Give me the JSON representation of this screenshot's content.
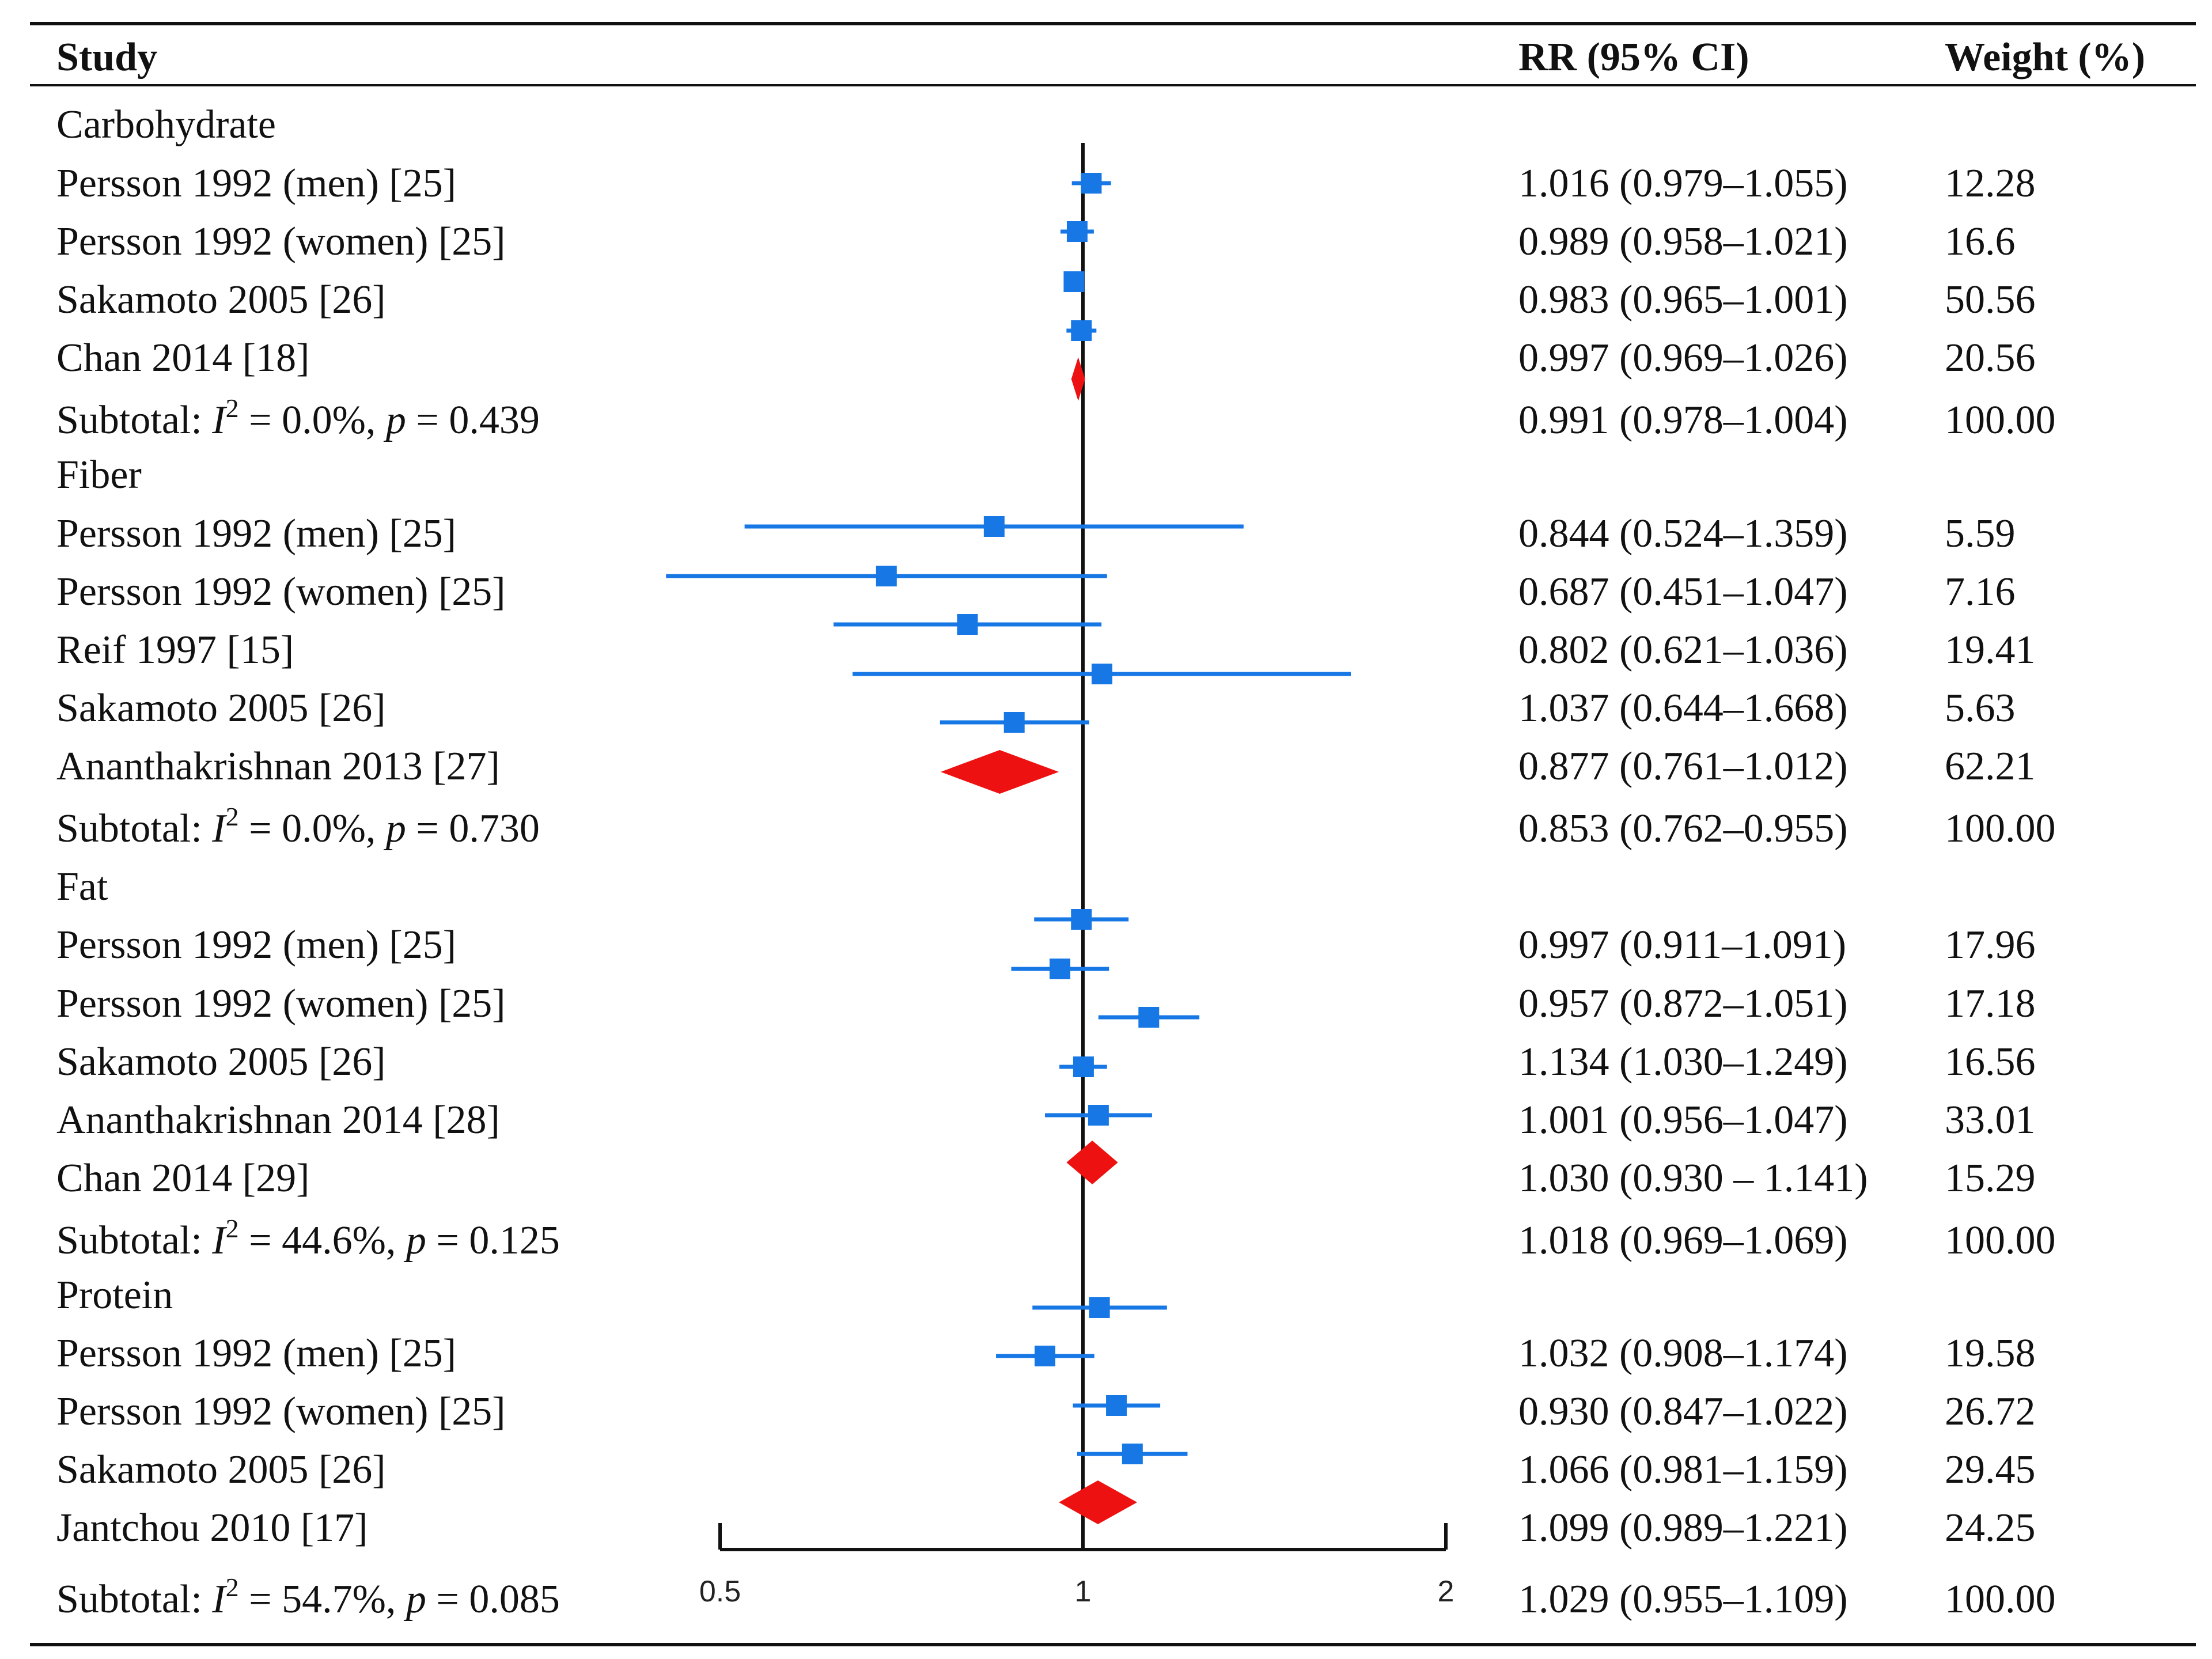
{
  "header": {
    "study": "Study",
    "rr": "RR (95% CI)",
    "weight": "Weight (%)"
  },
  "rows": [
    {
      "type": "group",
      "label": "Carbohydrate"
    },
    {
      "type": "study",
      "label": "Persson 1992 (men) [25]",
      "rr_text": "1.016 (0.979–1.055)",
      "weight": "12.28"
    },
    {
      "type": "study",
      "label": "Persson 1992 (women) [25]",
      "rr_text": "0.989 (0.958–1.021)",
      "weight": "16.6"
    },
    {
      "type": "study",
      "label": "Sakamoto 2005 [26]",
      "rr_text": "0.983 (0.965–1.001)",
      "weight": "50.56"
    },
    {
      "type": "study",
      "label": "Chan 2014 [18]",
      "rr_text": "0.997 (0.969–1.026)",
      "weight": "20.56"
    },
    {
      "type": "subtotal",
      "label_prefix": "Subtotal: ",
      "i_char": "I",
      "sup": "2",
      "label_mid": " = 0.0%, ",
      "p_char": "p",
      "label_end": " = 0.439",
      "rr_text": "0.991 (0.978–1.004)",
      "weight": "100.00"
    },
    {
      "type": "group",
      "label": "Fiber"
    },
    {
      "type": "study",
      "label": "Persson 1992 (men) [25]",
      "rr_text": "0.844 (0.524–1.359)",
      "weight": "5.59"
    },
    {
      "type": "study",
      "label": "Persson 1992 (women) [25]",
      "rr_text": "0.687 (0.451–1.047)",
      "weight": "7.16"
    },
    {
      "type": "study",
      "label": "Reif 1997 [15]",
      "rr_text": "0.802 (0.621–1.036)",
      "weight": "19.41"
    },
    {
      "type": "study",
      "label": "Sakamoto 2005 [26]",
      "rr_text": "1.037 (0.644–1.668)",
      "weight": "5.63"
    },
    {
      "type": "study",
      "label": "Ananthakrishnan 2013 [27]",
      "rr_text": "0.877 (0.761–1.012)",
      "weight": "62.21"
    },
    {
      "type": "subtotal",
      "label_prefix": "Subtotal: ",
      "i_char": "I",
      "sup": "2",
      "label_mid": " = 0.0%, ",
      "p_char": "p",
      "label_end": " = 0.730",
      "rr_text": "0.853 (0.762–0.955)",
      "weight": "100.00"
    },
    {
      "type": "group",
      "label": "Fat"
    },
    {
      "type": "study",
      "label": "Persson 1992 (men) [25]",
      "rr_text": "0.997 (0.911–1.091)",
      "weight": "17.96"
    },
    {
      "type": "study",
      "label": "Persson 1992 (women) [25]",
      "rr_text": "0.957 (0.872–1.051)",
      "weight": "17.18"
    },
    {
      "type": "study",
      "label": "Sakamoto 2005 [26]",
      "rr_text": "1.134 (1.030–1.249)",
      "weight": "16.56"
    },
    {
      "type": "study",
      "label": "Ananthakrishnan 2014 [28]",
      "rr_text": "1.001 (0.956–1.047)",
      "weight": "33.01"
    },
    {
      "type": "study",
      "label": "Chan 2014 [29]",
      "rr_text": "1.030 (0.930 – 1.141)",
      "weight": "15.29"
    },
    {
      "type": "subtotal",
      "label_prefix": "Subtotal: ",
      "i_char": "I",
      "sup": "2",
      "label_mid": " = 44.6%, ",
      "p_char": "p",
      "label_end": " = 0.125",
      "rr_text": "1.018 (0.969–1.069)",
      "weight": "100.00"
    },
    {
      "type": "group",
      "label": "Protein"
    },
    {
      "type": "study",
      "label": "Persson 1992 (men) [25]",
      "rr_text": "1.032 (0.908–1.174)",
      "weight": "19.58"
    },
    {
      "type": "study",
      "label": "Persson 1992 (women) [25]",
      "rr_text": "0.930 (0.847–1.022)",
      "weight": "26.72"
    },
    {
      "type": "study",
      "label": "Sakamoto 2005 [26]",
      "rr_text": "1.066 (0.981–1.159)",
      "weight": "29.45"
    },
    {
      "type": "study",
      "label": "Jantchou 2010 [17]",
      "rr_text": "1.099 (0.989–1.221)",
      "weight": "24.25"
    },
    {
      "type": "subtotal",
      "label_prefix": "Subtotal: ",
      "i_char": "I",
      "sup": "2",
      "label_mid": " = 54.7%, ",
      "p_char": "p",
      "label_end": " = 0.085",
      "rr_text": "1.029 (0.955–1.109)",
      "weight": "100.00"
    }
  ],
  "chart_data": {
    "type": "forest",
    "title": "",
    "xlabel": "",
    "ylabel": "",
    "x_scale": "log",
    "xlim": [
      0.5,
      2
    ],
    "x_ticks": [
      0.5,
      1,
      2
    ],
    "x_tick_labels": [
      "0.5",
      "1",
      "2"
    ],
    "reference_line": 1,
    "colors": {
      "study_marker": "#1677e5",
      "pooled_marker": "#ee1111",
      "axis": "#111111"
    },
    "groups": [
      {
        "name": "Carbohydrate",
        "studies": [
          {
            "name": "Persson 1992 (men) [25]",
            "rr": 1.016,
            "lo": 0.979,
            "hi": 1.055,
            "weight": 12.28
          },
          {
            "name": "Persson 1992 (women) [25]",
            "rr": 0.989,
            "lo": 0.958,
            "hi": 1.021,
            "weight": 16.6
          },
          {
            "name": "Sakamoto 2005 [26]",
            "rr": 0.983,
            "lo": 0.965,
            "hi": 1.001,
            "weight": 50.56
          },
          {
            "name": "Chan 2014 [18]",
            "rr": 0.997,
            "lo": 0.969,
            "hi": 1.026,
            "weight": 20.56
          }
        ],
        "subtotal": {
          "rr": 0.991,
          "lo": 0.978,
          "hi": 1.004,
          "i2": 0.0,
          "p": 0.439
        }
      },
      {
        "name": "Fiber",
        "studies": [
          {
            "name": "Persson 1992 (men) [25]",
            "rr": 0.844,
            "lo": 0.524,
            "hi": 1.359,
            "weight": 5.59
          },
          {
            "name": "Persson 1992 (women) [25]",
            "rr": 0.687,
            "lo": 0.451,
            "hi": 1.047,
            "weight": 7.16
          },
          {
            "name": "Reif 1997 [15]",
            "rr": 0.802,
            "lo": 0.621,
            "hi": 1.036,
            "weight": 19.41
          },
          {
            "name": "Sakamoto 2005 [26]",
            "rr": 1.037,
            "lo": 0.644,
            "hi": 1.668,
            "weight": 5.63
          },
          {
            "name": "Ananthakrishnan 2013 [27]",
            "rr": 0.877,
            "lo": 0.761,
            "hi": 1.012,
            "weight": 62.21
          }
        ],
        "subtotal": {
          "rr": 0.853,
          "lo": 0.762,
          "hi": 0.955,
          "i2": 0.0,
          "p": 0.73
        }
      },
      {
        "name": "Fat",
        "studies": [
          {
            "name": "Persson 1992 (men) [25]",
            "rr": 0.997,
            "lo": 0.911,
            "hi": 1.091,
            "weight": 17.96
          },
          {
            "name": "Persson 1992 (women) [25]",
            "rr": 0.957,
            "lo": 0.872,
            "hi": 1.051,
            "weight": 17.18
          },
          {
            "name": "Sakamoto 2005 [26]",
            "rr": 1.134,
            "lo": 1.03,
            "hi": 1.249,
            "weight": 16.56
          },
          {
            "name": "Ananthakrishnan 2014 [28]",
            "rr": 1.001,
            "lo": 0.956,
            "hi": 1.047,
            "weight": 33.01
          },
          {
            "name": "Chan 2014 [29]",
            "rr": 1.03,
            "lo": 0.93,
            "hi": 1.141,
            "weight": 15.29
          }
        ],
        "subtotal": {
          "rr": 1.018,
          "lo": 0.969,
          "hi": 1.069,
          "i2": 44.6,
          "p": 0.125
        }
      },
      {
        "name": "Protein",
        "studies": [
          {
            "name": "Persson 1992 (men) [25]",
            "rr": 1.032,
            "lo": 0.908,
            "hi": 1.174,
            "weight": 19.58
          },
          {
            "name": "Persson 1992 (women) [25]",
            "rr": 0.93,
            "lo": 0.847,
            "hi": 1.022,
            "weight": 26.72
          },
          {
            "name": "Sakamoto 2005 [26]",
            "rr": 1.066,
            "lo": 0.981,
            "hi": 1.159,
            "weight": 29.45
          },
          {
            "name": "Jantchou 2010 [17]",
            "rr": 1.099,
            "lo": 0.989,
            "hi": 1.221,
            "weight": 24.25
          }
        ],
        "subtotal": {
          "rr": 1.029,
          "lo": 0.955,
          "hi": 1.109,
          "i2": 54.7,
          "p": 0.085
        }
      }
    ]
  }
}
